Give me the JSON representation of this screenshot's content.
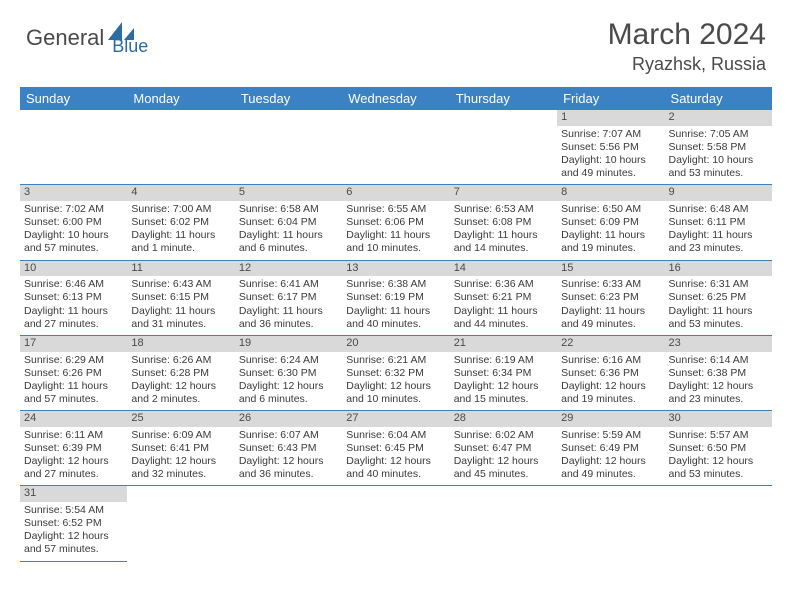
{
  "logo": {
    "general": "General",
    "blue": "Blue"
  },
  "title": "March 2024",
  "location": "Ryazhsk, Russia",
  "day_headers": [
    "Sunday",
    "Monday",
    "Tuesday",
    "Wednesday",
    "Thursday",
    "Friday",
    "Saturday"
  ],
  "header_bg": "#3b82c4",
  "daynum_bg": "#d9d9d9",
  "row_border": "#3b82c4",
  "weeks": [
    [
      null,
      null,
      null,
      null,
      null,
      {
        "n": "1",
        "sr": "7:07 AM",
        "ss": "5:56 PM",
        "dl": "10 hours and 49 minutes."
      },
      {
        "n": "2",
        "sr": "7:05 AM",
        "ss": "5:58 PM",
        "dl": "10 hours and 53 minutes."
      }
    ],
    [
      {
        "n": "3",
        "sr": "7:02 AM",
        "ss": "6:00 PM",
        "dl": "10 hours and 57 minutes."
      },
      {
        "n": "4",
        "sr": "7:00 AM",
        "ss": "6:02 PM",
        "dl": "11 hours and 1 minute."
      },
      {
        "n": "5",
        "sr": "6:58 AM",
        "ss": "6:04 PM",
        "dl": "11 hours and 6 minutes."
      },
      {
        "n": "6",
        "sr": "6:55 AM",
        "ss": "6:06 PM",
        "dl": "11 hours and 10 minutes."
      },
      {
        "n": "7",
        "sr": "6:53 AM",
        "ss": "6:08 PM",
        "dl": "11 hours and 14 minutes."
      },
      {
        "n": "8",
        "sr": "6:50 AM",
        "ss": "6:09 PM",
        "dl": "11 hours and 19 minutes."
      },
      {
        "n": "9",
        "sr": "6:48 AM",
        "ss": "6:11 PM",
        "dl": "11 hours and 23 minutes."
      }
    ],
    [
      {
        "n": "10",
        "sr": "6:46 AM",
        "ss": "6:13 PM",
        "dl": "11 hours and 27 minutes."
      },
      {
        "n": "11",
        "sr": "6:43 AM",
        "ss": "6:15 PM",
        "dl": "11 hours and 31 minutes."
      },
      {
        "n": "12",
        "sr": "6:41 AM",
        "ss": "6:17 PM",
        "dl": "11 hours and 36 minutes."
      },
      {
        "n": "13",
        "sr": "6:38 AM",
        "ss": "6:19 PM",
        "dl": "11 hours and 40 minutes."
      },
      {
        "n": "14",
        "sr": "6:36 AM",
        "ss": "6:21 PM",
        "dl": "11 hours and 44 minutes."
      },
      {
        "n": "15",
        "sr": "6:33 AM",
        "ss": "6:23 PM",
        "dl": "11 hours and 49 minutes."
      },
      {
        "n": "16",
        "sr": "6:31 AM",
        "ss": "6:25 PM",
        "dl": "11 hours and 53 minutes."
      }
    ],
    [
      {
        "n": "17",
        "sr": "6:29 AM",
        "ss": "6:26 PM",
        "dl": "11 hours and 57 minutes."
      },
      {
        "n": "18",
        "sr": "6:26 AM",
        "ss": "6:28 PM",
        "dl": "12 hours and 2 minutes."
      },
      {
        "n": "19",
        "sr": "6:24 AM",
        "ss": "6:30 PM",
        "dl": "12 hours and 6 minutes."
      },
      {
        "n": "20",
        "sr": "6:21 AM",
        "ss": "6:32 PM",
        "dl": "12 hours and 10 minutes."
      },
      {
        "n": "21",
        "sr": "6:19 AM",
        "ss": "6:34 PM",
        "dl": "12 hours and 15 minutes."
      },
      {
        "n": "22",
        "sr": "6:16 AM",
        "ss": "6:36 PM",
        "dl": "12 hours and 19 minutes."
      },
      {
        "n": "23",
        "sr": "6:14 AM",
        "ss": "6:38 PM",
        "dl": "12 hours and 23 minutes."
      }
    ],
    [
      {
        "n": "24",
        "sr": "6:11 AM",
        "ss": "6:39 PM",
        "dl": "12 hours and 27 minutes."
      },
      {
        "n": "25",
        "sr": "6:09 AM",
        "ss": "6:41 PM",
        "dl": "12 hours and 32 minutes."
      },
      {
        "n": "26",
        "sr": "6:07 AM",
        "ss": "6:43 PM",
        "dl": "12 hours and 36 minutes."
      },
      {
        "n": "27",
        "sr": "6:04 AM",
        "ss": "6:45 PM",
        "dl": "12 hours and 40 minutes."
      },
      {
        "n": "28",
        "sr": "6:02 AM",
        "ss": "6:47 PM",
        "dl": "12 hours and 45 minutes."
      },
      {
        "n": "29",
        "sr": "5:59 AM",
        "ss": "6:49 PM",
        "dl": "12 hours and 49 minutes."
      },
      {
        "n": "30",
        "sr": "5:57 AM",
        "ss": "6:50 PM",
        "dl": "12 hours and 53 minutes."
      }
    ],
    [
      {
        "n": "31",
        "sr": "5:54 AM",
        "ss": "6:52 PM",
        "dl": "12 hours and 57 minutes."
      },
      null,
      null,
      null,
      null,
      null,
      null
    ]
  ],
  "labels": {
    "sunrise": "Sunrise: ",
    "sunset": "Sunset: ",
    "daylight": "Daylight: "
  }
}
